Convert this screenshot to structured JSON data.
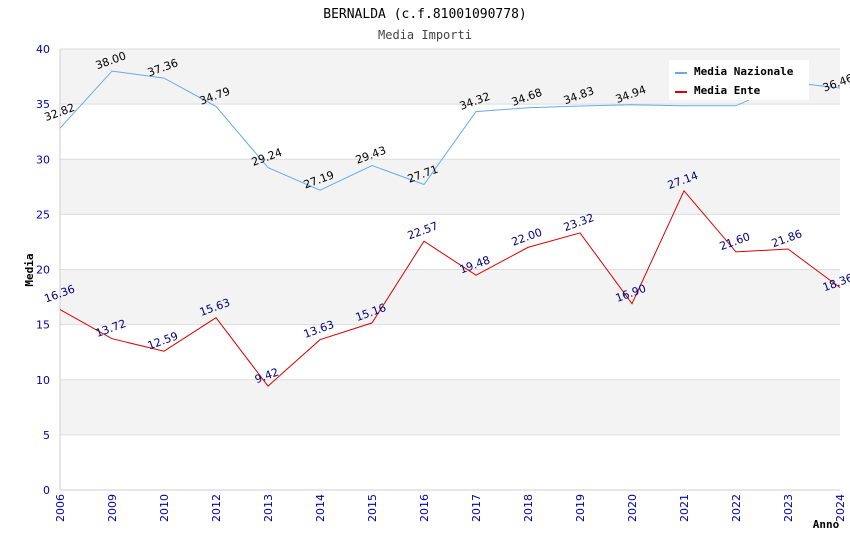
{
  "chart_data": {
    "type": "line",
    "title": "BERNALDA (c.f.81001090778)",
    "subtitle": "Media Importi",
    "xlabel": "Anno",
    "ylabel": "Media",
    "ylim": [
      0,
      40
    ],
    "yticks": [
      0,
      5,
      10,
      15,
      20,
      25,
      30,
      35,
      40
    ],
    "categories": [
      "2006",
      "2009",
      "2010",
      "2012",
      "2013",
      "2014",
      "2015",
      "2016",
      "2017",
      "2018",
      "2019",
      "2020",
      "2021",
      "2022",
      "2023",
      "2024"
    ],
    "legend_position": "top-right",
    "series": [
      {
        "name": "Media Nazionale",
        "color": "#66aaee",
        "values": [
          32.82,
          38.0,
          37.36,
          34.79,
          29.24,
          27.19,
          29.43,
          27.71,
          34.32,
          34.68,
          34.83,
          34.94,
          34.85,
          34.85,
          37.0,
          36.46
        ],
        "labels": [
          "32.82",
          "38.00",
          "37.36",
          "34.79",
          "29.24",
          "27.19",
          "29.43",
          "27.71",
          "34.32",
          "34.68",
          "34.83",
          "34.94",
          "",
          "",
          "",
          "36.46"
        ]
      },
      {
        "name": "Media Ente",
        "color": "#dd0000",
        "values": [
          16.36,
          13.72,
          12.59,
          15.63,
          9.42,
          13.63,
          15.16,
          22.57,
          19.48,
          22.0,
          23.32,
          16.9,
          27.14,
          21.6,
          21.86,
          18.36
        ],
        "labels": [
          "16.36",
          "13.72",
          "12.59",
          "15.63",
          "9.42",
          "13.63",
          "15.16",
          "22.57",
          "19.48",
          "22.00",
          "23.32",
          "16.90",
          "27.14",
          "21.60",
          "21.86",
          "18.36"
        ]
      }
    ]
  }
}
